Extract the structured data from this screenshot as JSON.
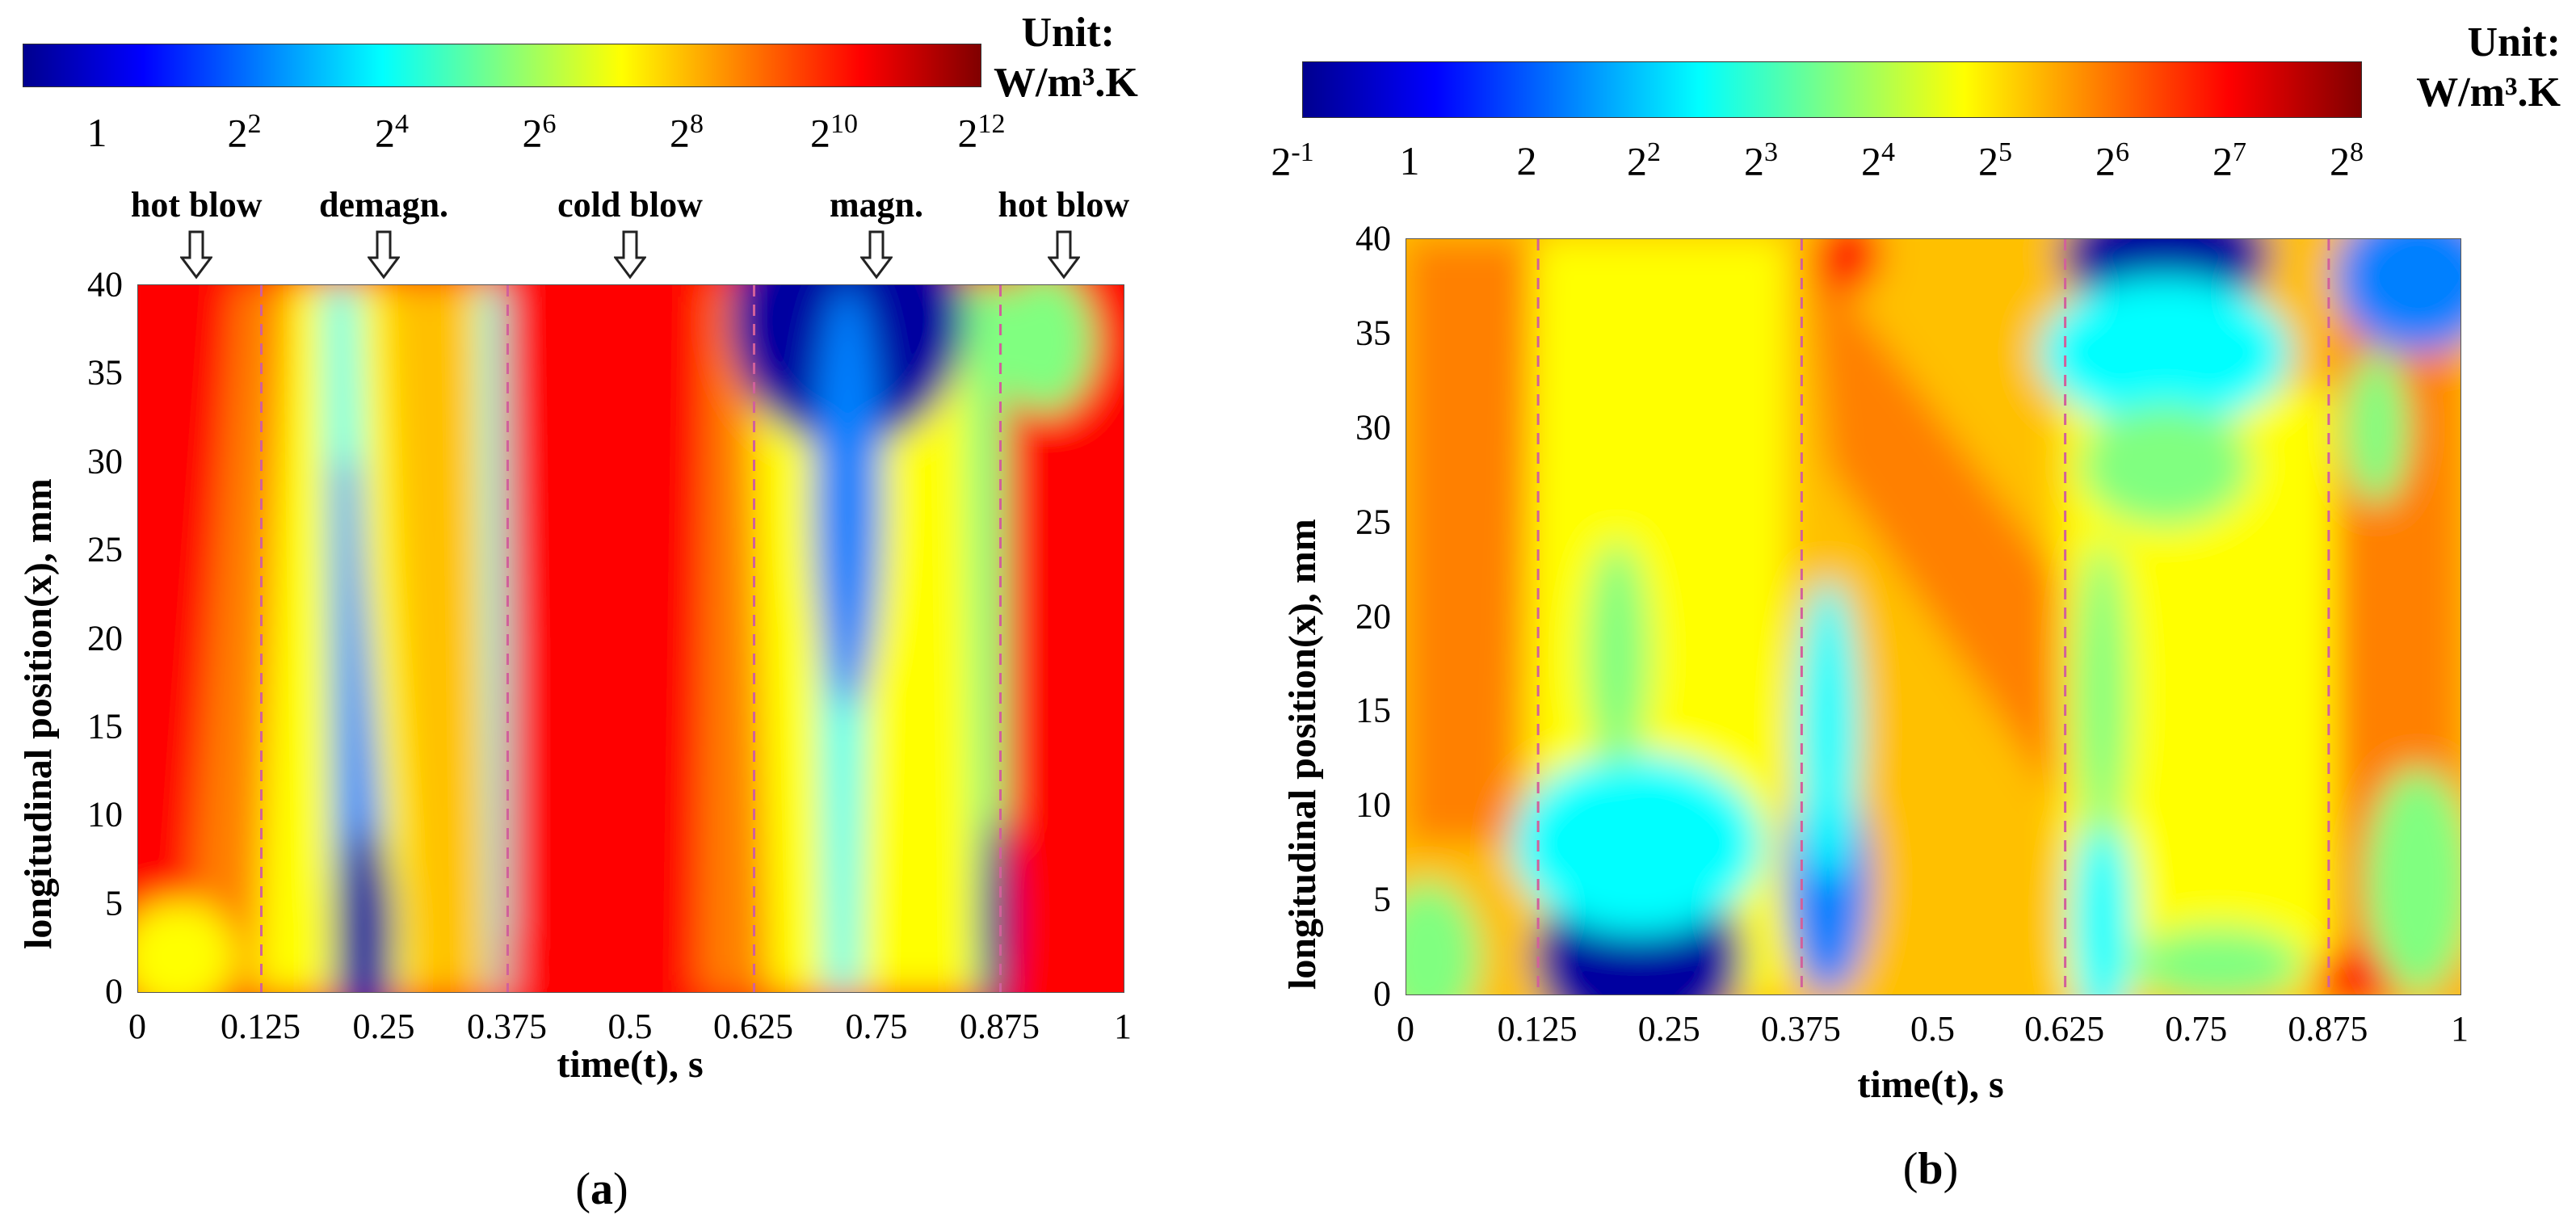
{
  "chart_data": [
    {
      "type": "heatmap",
      "panel_label": "a",
      "title": "",
      "xlabel": "time(t), s",
      "ylabel": "longitudinal position(x), mm",
      "xlim": [
        0,
        1
      ],
      "ylim": [
        0,
        40
      ],
      "x_ticks": [
        "0",
        "0.125",
        "0.25",
        "0.375",
        "0.5",
        "0.625",
        "0.75",
        "0.875",
        "1"
      ],
      "y_ticks": [
        "0",
        "5",
        "10",
        "15",
        "20",
        "25",
        "30",
        "35",
        "40"
      ],
      "phase_boundaries": [
        0.125,
        0.375,
        0.625,
        0.875
      ],
      "phase_labels": [
        {
          "text": "hot blow",
          "t": 0.06
        },
        {
          "text": "demagn.",
          "t": 0.25
        },
        {
          "text": "cold blow",
          "t": 0.5
        },
        {
          "text": "magn.",
          "t": 0.75
        },
        {
          "text": "hot blow",
          "t": 0.94
        }
      ],
      "colorbar": {
        "unit_line1": "Unit:",
        "unit_line2": "W/m³.K",
        "scale": "log2",
        "range_exponent": [
          0,
          12
        ],
        "ticks": [
          {
            "base": "1",
            "exp": ""
          },
          {
            "base": "2",
            "exp": "2"
          },
          {
            "base": "2",
            "exp": "4"
          },
          {
            "base": "2",
            "exp": "6"
          },
          {
            "base": "2",
            "exp": "8"
          },
          {
            "base": "2",
            "exp": "10"
          },
          {
            "base": "2",
            "exp": "12"
          }
        ]
      }
    },
    {
      "type": "heatmap",
      "panel_label": "b",
      "title": "",
      "xlabel": "time(t), s",
      "ylabel": "longitudinal position(x), mm",
      "xlim": [
        0,
        1
      ],
      "ylim": [
        0,
        40
      ],
      "x_ticks": [
        "0",
        "0.125",
        "0.25",
        "0.375",
        "0.5",
        "0.625",
        "0.75",
        "0.875",
        "1"
      ],
      "y_ticks": [
        "0",
        "5",
        "10",
        "15",
        "20",
        "25",
        "30",
        "35",
        "40"
      ],
      "phase_boundaries": [
        0.125,
        0.375,
        0.625,
        0.875
      ],
      "colorbar": {
        "unit_line1": "Unit:",
        "unit_line2": "W/m³.K",
        "scale": "log2",
        "range_exponent": [
          -1,
          8
        ],
        "ticks": [
          {
            "base": "2",
            "exp": "-1"
          },
          {
            "base": "1",
            "exp": ""
          },
          {
            "base": "2",
            "exp": ""
          },
          {
            "base": "2",
            "exp": "2"
          },
          {
            "base": "2",
            "exp": "3"
          },
          {
            "base": "2",
            "exp": "4"
          },
          {
            "base": "2",
            "exp": "5"
          },
          {
            "base": "2",
            "exp": "6"
          },
          {
            "base": "2",
            "exp": "7"
          },
          {
            "base": "2",
            "exp": "8"
          }
        ]
      }
    }
  ],
  "colors": {
    "jet": [
      "#00008f",
      "#0000ff",
      "#0080ff",
      "#00ffff",
      "#80ff80",
      "#ffff00",
      "#ff8000",
      "#ff0000",
      "#800000"
    ],
    "phase_line": "#d1609b"
  }
}
